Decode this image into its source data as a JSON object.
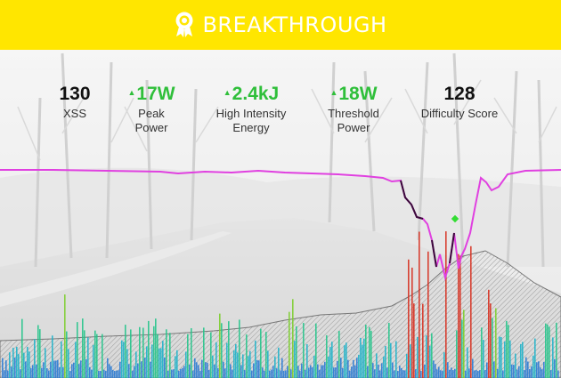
{
  "banner": {
    "title": "BREAKTHROUGH",
    "icon": "ribbon-badge-icon",
    "background_color": "#ffe600",
    "text_color": "#ffffff"
  },
  "stats": [
    {
      "value": "130",
      "label_line1": "XSS",
      "label_line2": "",
      "trend": "none"
    },
    {
      "value": "17W",
      "label_line1": "Peak",
      "label_line2": "Power",
      "trend": "up"
    },
    {
      "value": "2.4kJ",
      "label_line1": "High Intensity",
      "label_line2": "Energy",
      "trend": "up"
    },
    {
      "value": "18W",
      "label_line1": "Threshold",
      "label_line2": "Power",
      "trend": "up"
    },
    {
      "value": "128",
      "label_line1": "Difficulty Score",
      "label_line2": "",
      "trend": "none"
    }
  ],
  "colors": {
    "trend_up": "#2fbf3a",
    "power_line": "#e040e0",
    "elevation_outline": "#777777"
  }
}
